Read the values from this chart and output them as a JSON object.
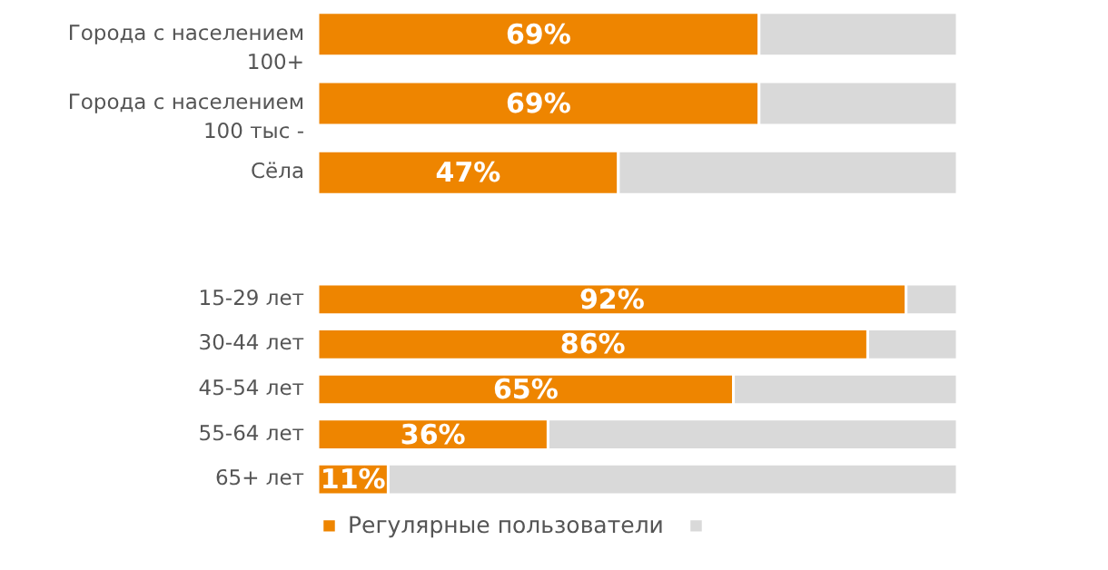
{
  "chart_data": [
    {
      "type": "bar",
      "orientation": "horizontal",
      "stacked": true,
      "categories": [
        "Города с населением 100+",
        "Города с населением 100 тыс -",
        "Сёла"
      ],
      "xlim": [
        0,
        100
      ],
      "tick_labels": "y",
      "legend": false,
      "series": [
        {
          "color": "#ee8500",
          "values": [
            69,
            69,
            47
          ],
          "value_labels": [
            "69%",
            "69%",
            "47%"
          ]
        },
        {
          "color": "#d9d9d9",
          "values": [
            31,
            31,
            53
          ]
        }
      ]
    },
    {
      "type": "bar",
      "orientation": "horizontal",
      "stacked": true,
      "categories": [
        "15-29 лет",
        "30-44 лет",
        "45-54 лет",
        "55-64 лет",
        "65+ лет"
      ],
      "xlim": [
        0,
        100
      ],
      "tick_labels": "y",
      "legend": "bottom",
      "series": [
        {
          "name": "Регулярные пользователи",
          "color": "#ee8500",
          "values": [
            92,
            86,
            65,
            36,
            11
          ],
          "value_labels": [
            "92%",
            "86%",
            "65%",
            "36%",
            "11%"
          ]
        },
        {
          "color": "#d9d9d9",
          "values": [
            8,
            14,
            35,
            64,
            89
          ]
        }
      ]
    }
  ]
}
